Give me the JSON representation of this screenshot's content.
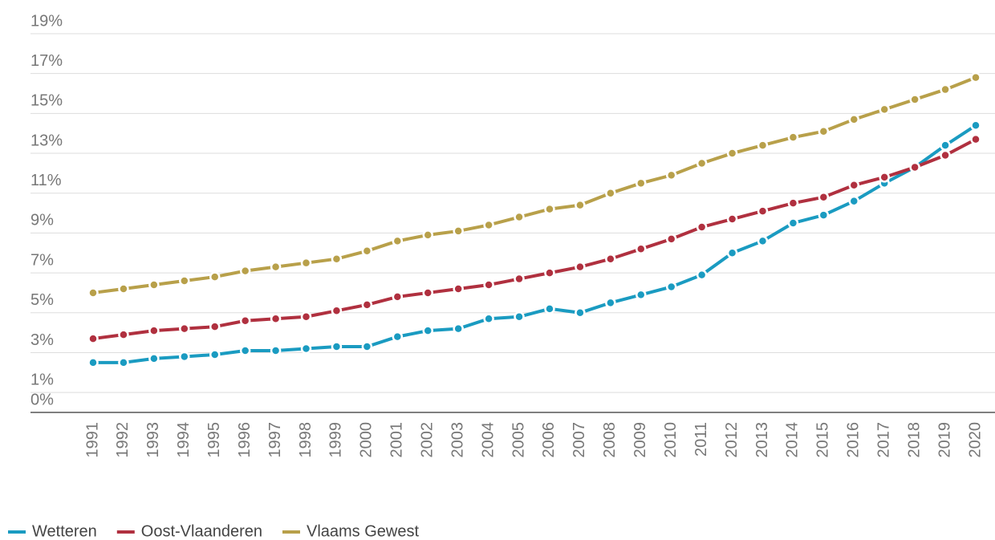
{
  "chart_data": {
    "type": "line",
    "categories": [
      "1991",
      "1992",
      "1993",
      "1994",
      "1995",
      "1996",
      "1997",
      "1998",
      "1999",
      "2000",
      "2001",
      "2002",
      "2003",
      "2004",
      "2005",
      "2006",
      "2007",
      "2008",
      "2009",
      "2010",
      "2011",
      "2012",
      "2013",
      "2014",
      "2015",
      "2016",
      "2017",
      "2018",
      "2019",
      "2020"
    ],
    "series": [
      {
        "name": "Wetteren",
        "color": "#1a9bc1",
        "values": [
          2.5,
          2.5,
          2.7,
          2.8,
          2.9,
          3.1,
          3.1,
          3.2,
          3.3,
          3.3,
          3.8,
          4.1,
          4.2,
          4.7,
          4.8,
          5.2,
          5.0,
          5.5,
          5.9,
          6.3,
          6.9,
          8.0,
          8.6,
          9.5,
          9.9,
          10.6,
          11.5,
          12.3,
          13.4,
          14.4
        ]
      },
      {
        "name": "Oost-Vlaanderen",
        "color": "#b0303f",
        "values": [
          3.7,
          3.9,
          4.1,
          4.2,
          4.3,
          4.6,
          4.7,
          4.8,
          5.1,
          5.4,
          5.8,
          6.0,
          6.2,
          6.4,
          6.7,
          7.0,
          7.3,
          7.7,
          8.2,
          8.7,
          9.3,
          9.7,
          10.1,
          10.5,
          10.8,
          11.4,
          11.8,
          12.3,
          12.9,
          13.7
        ]
      },
      {
        "name": "Vlaams Gewest",
        "color": "#b8a04a",
        "values": [
          6.0,
          6.2,
          6.4,
          6.6,
          6.8,
          7.1,
          7.3,
          7.5,
          7.7,
          8.1,
          8.6,
          8.9,
          9.1,
          9.4,
          9.8,
          10.2,
          10.4,
          11.0,
          11.5,
          11.9,
          12.5,
          13.0,
          13.4,
          13.8,
          14.1,
          14.7,
          15.2,
          15.7,
          16.2,
          16.8
        ]
      }
    ],
    "ylim": [
      0,
      19
    ],
    "yticks": [
      {
        "value": 0,
        "label": "0%"
      },
      {
        "value": 1,
        "label": "1%"
      },
      {
        "value": 3,
        "label": "3%"
      },
      {
        "value": 5,
        "label": "5%"
      },
      {
        "value": 7,
        "label": "7%"
      },
      {
        "value": 9,
        "label": "9%"
      },
      {
        "value": 11,
        "label": "11%"
      },
      {
        "value": 13,
        "label": "13%"
      },
      {
        "value": 15,
        "label": "15%"
      },
      {
        "value": 17,
        "label": "17%"
      },
      {
        "value": 19,
        "label": "19%"
      }
    ],
    "grid": true,
    "legend": "bottom-left"
  }
}
